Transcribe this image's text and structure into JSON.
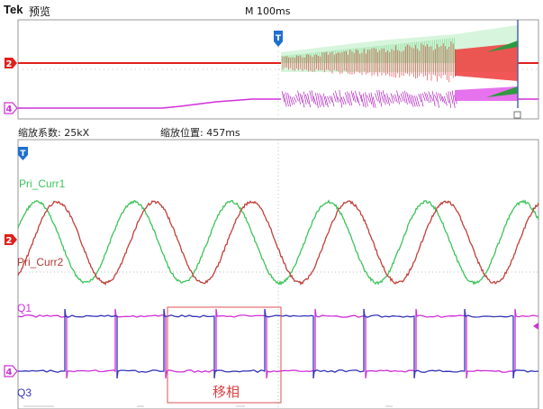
{
  "header": {
    "brand": "Tek",
    "mode": "预览",
    "timebase": "M 100ms"
  },
  "zoom_info": {
    "factor": "缩放系数: 25kX",
    "position": "缩放位置: 457ms"
  },
  "channels": {
    "ch2_marker": "2",
    "ch4_marker": "4",
    "trigger_marker": "T"
  },
  "labels": {
    "pri_curr1": "Pri_Curr1",
    "pri_curr2": "Pri_Curr2",
    "q1": "Q1",
    "q3": "Q3",
    "phase_shift": "移相"
  },
  "colors": {
    "ch1_green": "#3cc45a",
    "ch2_red": "#c0403a",
    "ch3_blue": "#3434b8",
    "ch4_magenta": "#d030d8",
    "trigger_blue": "#1e6fd0",
    "annotation_red": "#d84040"
  }
}
